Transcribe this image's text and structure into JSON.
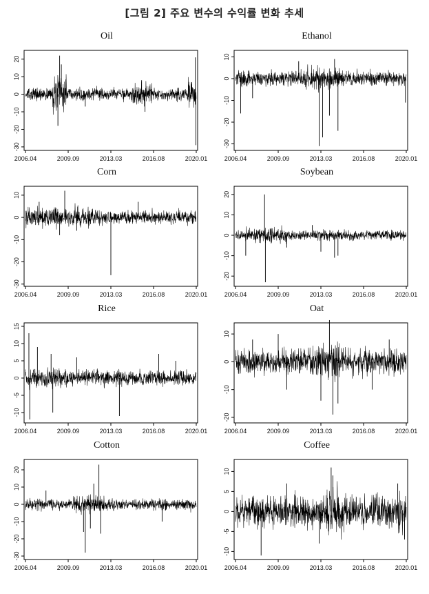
{
  "figure": {
    "title": "[그림 2] 주요 변수의 수익률 변화 추세"
  },
  "chart_data": [
    {
      "type": "line",
      "title": "Oil",
      "x_ticks": [
        "2006.04",
        "2009.09",
        "2013.03",
        "2016.08",
        "2020.01"
      ],
      "y_ticks": [
        20,
        10,
        0,
        -10,
        -20,
        -30
      ],
      "ylim": [
        -32,
        25
      ],
      "noise": 2.2,
      "spikes": [
        {
          "x": 0.2,
          "y": 22
        },
        {
          "x": 0.19,
          "y": -18
        },
        {
          "x": 0.21,
          "y": 17
        },
        {
          "x": 0.35,
          "y": -7
        },
        {
          "x": 0.68,
          "y": 8
        },
        {
          "x": 0.7,
          "y": -10
        },
        {
          "x": 0.995,
          "y": 21
        },
        {
          "x": 0.998,
          "y": -29
        }
      ],
      "bursts": [
        {
          "start": 0.16,
          "end": 0.24,
          "amp": 3.5
        },
        {
          "start": 0.62,
          "end": 0.74,
          "amp": 1.8
        },
        {
          "start": 0.95,
          "end": 1.0,
          "amp": 3.0
        }
      ]
    },
    {
      "type": "line",
      "title": "Ethanol",
      "x_ticks": [
        "2006.04",
        "2009.09",
        "2013.03",
        "2016.08",
        "2020.01"
      ],
      "y_ticks": [
        10,
        0,
        -10,
        -20,
        -30
      ],
      "ylim": [
        -33,
        13
      ],
      "noise": 2.3,
      "spikes": [
        {
          "x": 0.03,
          "y": -16
        },
        {
          "x": 0.1,
          "y": -9
        },
        {
          "x": 0.49,
          "y": -31
        },
        {
          "x": 0.51,
          "y": -27
        },
        {
          "x": 0.55,
          "y": -17
        },
        {
          "x": 0.6,
          "y": -24
        },
        {
          "x": 0.37,
          "y": 8
        },
        {
          "x": 0.58,
          "y": 9
        },
        {
          "x": 0.995,
          "y": -11
        }
      ],
      "bursts": [
        {
          "start": 0.4,
          "end": 0.62,
          "amp": 1.5
        }
      ]
    },
    {
      "type": "line",
      "title": "Corn",
      "x_ticks": [
        "2006.04",
        "2009.09",
        "2013.03",
        "2016.08",
        "2020.01"
      ],
      "y_ticks": [
        10,
        0,
        -10,
        -20,
        -30
      ],
      "ylim": [
        -31,
        14
      ],
      "noise": 2.0,
      "spikes": [
        {
          "x": 0.23,
          "y": 12
        },
        {
          "x": 0.2,
          "y": -8
        },
        {
          "x": 0.5,
          "y": -26
        },
        {
          "x": 0.08,
          "y": 7
        },
        {
          "x": 0.66,
          "y": 7
        },
        {
          "x": 0.3,
          "y": -6
        }
      ],
      "bursts": [
        {
          "start": 0.0,
          "end": 0.4,
          "amp": 1.4
        }
      ]
    },
    {
      "type": "line",
      "title": "Soybean",
      "x_ticks": [
        "2006.04",
        "2009.09",
        "2013.03",
        "2016.08",
        "2020.01"
      ],
      "y_ticks": [
        20,
        10,
        0,
        -10,
        -20
      ],
      "ylim": [
        -25,
        24
      ],
      "noise": 1.6,
      "spikes": [
        {
          "x": 0.17,
          "y": 20
        },
        {
          "x": 0.175,
          "y": -23
        },
        {
          "x": 0.06,
          "y": -10
        },
        {
          "x": 0.5,
          "y": -8
        },
        {
          "x": 0.58,
          "y": -11
        },
        {
          "x": 0.6,
          "y": -10
        },
        {
          "x": 0.3,
          "y": -6
        },
        {
          "x": 0.45,
          "y": 5
        }
      ],
      "bursts": [
        {
          "start": 0.05,
          "end": 0.3,
          "amp": 1.5
        }
      ]
    },
    {
      "type": "line",
      "title": "Rice",
      "x_ticks": [
        "2006.04",
        "2009.09",
        "2013.03",
        "2016.08",
        "2020.01"
      ],
      "y_ticks": [
        15,
        10,
        5,
        0,
        -5,
        -10
      ],
      "ylim": [
        -13,
        16
      ],
      "noise": 1.4,
      "spikes": [
        {
          "x": 0.02,
          "y": 13
        },
        {
          "x": 0.025,
          "y": -12
        },
        {
          "x": 0.07,
          "y": 9
        },
        {
          "x": 0.16,
          "y": -10
        },
        {
          "x": 0.15,
          "y": 7
        },
        {
          "x": 0.55,
          "y": -11
        },
        {
          "x": 0.78,
          "y": 7
        },
        {
          "x": 0.88,
          "y": 5
        },
        {
          "x": 0.3,
          "y": 6
        }
      ],
      "bursts": [
        {
          "start": 0.0,
          "end": 0.25,
          "amp": 1.3
        }
      ]
    },
    {
      "type": "line",
      "title": "Oat",
      "x_ticks": [
        "2006.04",
        "2009.09",
        "2013.03",
        "2016.08",
        "2020.01"
      ],
      "y_ticks": [
        10,
        0,
        -10,
        -20
      ],
      "ylim": [
        -22,
        14
      ],
      "noise": 2.8,
      "spikes": [
        {
          "x": 0.55,
          "y": 15
        },
        {
          "x": 0.57,
          "y": -19
        },
        {
          "x": 0.5,
          "y": -14
        },
        {
          "x": 0.6,
          "y": -15
        },
        {
          "x": 0.25,
          "y": 10
        },
        {
          "x": 0.3,
          "y": -10
        },
        {
          "x": 0.8,
          "y": -10
        },
        {
          "x": 0.9,
          "y": 8
        },
        {
          "x": 0.1,
          "y": 8
        }
      ],
      "bursts": [
        {
          "start": 0.45,
          "end": 0.65,
          "amp": 1.4
        }
      ]
    },
    {
      "type": "line",
      "title": "Cotton",
      "x_ticks": [
        "2006.04",
        "2009.09",
        "2013.03",
        "2016.08",
        "2020.01"
      ],
      "y_ticks": [
        20,
        10,
        0,
        -10,
        -20,
        -30
      ],
      "ylim": [
        -32,
        26
      ],
      "noise": 2.0,
      "spikes": [
        {
          "x": 0.43,
          "y": 23
        },
        {
          "x": 0.35,
          "y": -28
        },
        {
          "x": 0.34,
          "y": -16
        },
        {
          "x": 0.38,
          "y": -14
        },
        {
          "x": 0.44,
          "y": -17
        },
        {
          "x": 0.4,
          "y": 12
        },
        {
          "x": 0.8,
          "y": -10
        },
        {
          "x": 0.12,
          "y": 8
        }
      ],
      "bursts": [
        {
          "start": 0.28,
          "end": 0.46,
          "amp": 1.6
        }
      ]
    },
    {
      "type": "line",
      "title": "Coffee",
      "x_ticks": [
        "2006.04",
        "2009.09",
        "2013.03",
        "2016.08",
        "2020.01"
      ],
      "y_ticks": [
        10,
        5,
        0,
        -5,
        -10
      ],
      "ylim": [
        -12,
        13
      ],
      "noise": 2.6,
      "spikes": [
        {
          "x": 0.56,
          "y": 11
        },
        {
          "x": 0.57,
          "y": 9
        },
        {
          "x": 0.15,
          "y": -11
        },
        {
          "x": 0.49,
          "y": -8
        },
        {
          "x": 0.95,
          "y": 7
        },
        {
          "x": 0.99,
          "y": -7
        },
        {
          "x": 0.3,
          "y": 7
        }
      ],
      "bursts": [
        {
          "start": 0.52,
          "end": 0.62,
          "amp": 1.4
        },
        {
          "start": 0.95,
          "end": 1.0,
          "amp": 1.4
        }
      ]
    }
  ]
}
